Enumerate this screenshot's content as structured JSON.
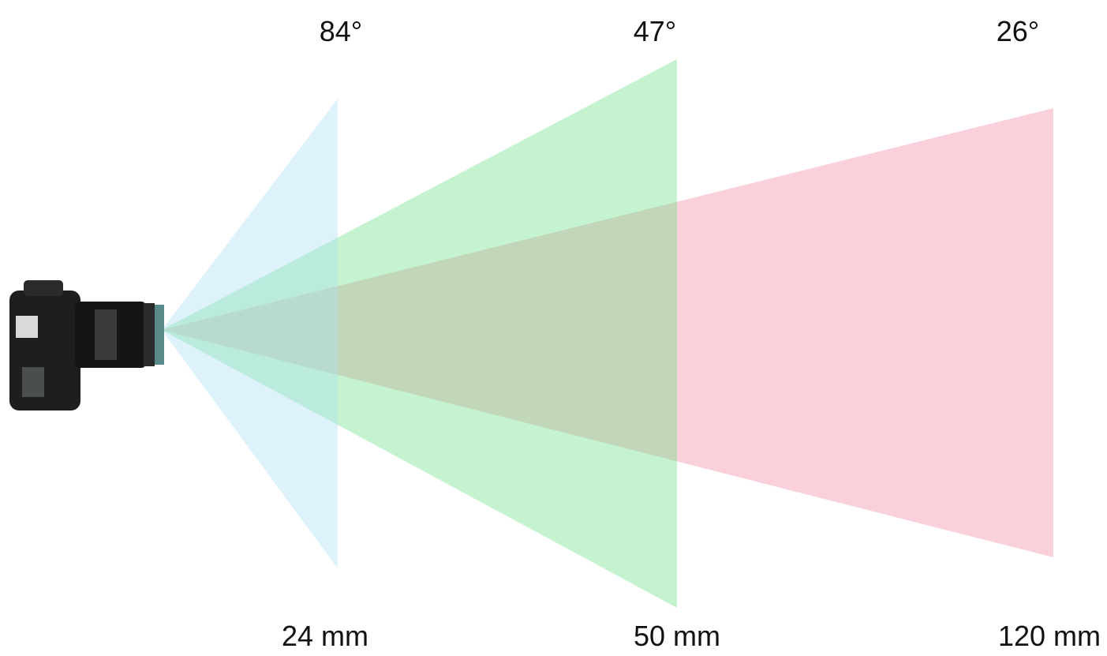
{
  "fields": [
    {
      "angle": "84°",
      "focal_length": "24 mm"
    },
    {
      "angle": "47°",
      "focal_length": "50 mm"
    },
    {
      "angle": "26°",
      "focal_length": "120 mm"
    }
  ]
}
